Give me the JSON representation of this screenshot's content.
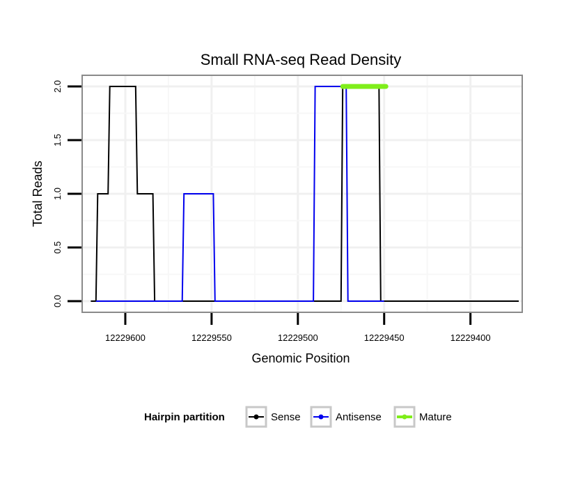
{
  "chart_data": {
    "type": "line",
    "title": "Small RNA-seq Read Density",
    "xlabel": "Genomic Position",
    "ylabel": "Total Reads",
    "x_reversed": true,
    "xlim": [
      12229625,
      12229370
    ],
    "ylim": [
      0,
      2.1
    ],
    "x_ticks": [
      12229600,
      12229550,
      12229500,
      12229450,
      12229400
    ],
    "x_tick_labels": [
      "12229600",
      "12229550",
      "12229500",
      "12229450",
      "12229400"
    ],
    "y_ticks": [
      0,
      0.5,
      1,
      1.5,
      2
    ],
    "y_tick_labels": [
      "0.0",
      "0.5",
      "1.0",
      "1.5",
      "2.0"
    ],
    "grid": true,
    "legend": {
      "title": "Hairpin partition",
      "position": "bottom"
    },
    "series": [
      {
        "name": "Sense",
        "color": "#000000",
        "x": [
          12229620,
          12229617,
          12229616,
          12229610,
          12229609,
          12229594,
          12229593,
          12229584,
          12229583,
          12229576,
          12229575,
          12229475,
          12229474,
          12229453,
          12229452,
          12229372
        ],
        "y": [
          0,
          0,
          1,
          1,
          2,
          2,
          1,
          1,
          0,
          0,
          0,
          0,
          2,
          2,
          0,
          0
        ]
      },
      {
        "name": "Antisense",
        "color": "#0000ee",
        "x": [
          12229617,
          12229567,
          12229566,
          12229549,
          12229548,
          12229491,
          12229490,
          12229472,
          12229471,
          12229450
        ],
        "y": [
          0,
          0,
          1,
          1,
          0,
          0,
          2,
          2,
          0,
          0
        ]
      },
      {
        "name": "Mature",
        "color": "#7fee1a",
        "x": [
          12229474,
          12229449
        ],
        "y": [
          2,
          2
        ]
      }
    ]
  }
}
